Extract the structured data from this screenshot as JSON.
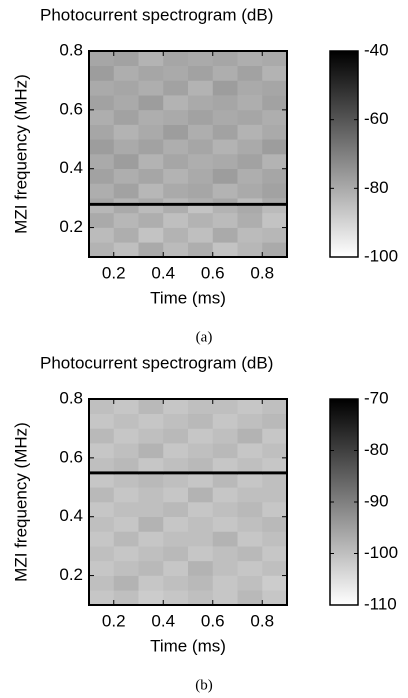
{
  "chart_data": [
    {
      "type": "heatmap",
      "title": "Photocurrent spectrogram (dB)",
      "x_label": "Time (ms)",
      "y_label": "MZI frequency (MHz)",
      "caption": "(a)",
      "xbins": [
        0.1,
        0.2,
        0.3,
        0.4,
        0.5,
        0.6,
        0.7,
        0.8,
        0.9
      ],
      "ybins": [
        0.1,
        0.15,
        0.2,
        0.25,
        0.275,
        0.285,
        0.3,
        0.35,
        0.4,
        0.45,
        0.5,
        0.55,
        0.6,
        0.65,
        0.7,
        0.75,
        0.8
      ],
      "values": [
        [
          -82,
          -85,
          -80,
          -84,
          -81,
          -86,
          -83,
          -80
        ],
        [
          -84,
          -81,
          -86,
          -82,
          -85,
          -80,
          -84,
          -83
        ],
        [
          -80,
          -83,
          -81,
          -85,
          -82,
          -84,
          -81,
          -86
        ],
        [
          -83,
          -80,
          -84,
          -81,
          -86,
          -82,
          -80,
          -84
        ],
        [
          -40,
          -40,
          -40,
          -40,
          -40,
          -40,
          -40,
          -40
        ],
        [
          -79,
          -82,
          -80,
          -83,
          -81,
          -79,
          -84,
          -80
        ],
        [
          -81,
          -78,
          -83,
          -80,
          -79,
          -82,
          -80,
          -78
        ],
        [
          -78,
          -81,
          -79,
          -82,
          -80,
          -77,
          -81,
          -79
        ],
        [
          -80,
          -77,
          -82,
          -79,
          -81,
          -80,
          -78,
          -82
        ],
        [
          -77,
          -80,
          -78,
          -81,
          -79,
          -82,
          -80,
          -77
        ],
        [
          -79,
          -82,
          -80,
          -77,
          -81,
          -78,
          -82,
          -80
        ],
        [
          -81,
          -78,
          -81,
          -80,
          -78,
          -80,
          -79,
          -81
        ],
        [
          -78,
          -80,
          -77,
          -82,
          -80,
          -79,
          -81,
          -78
        ],
        [
          -80,
          -79,
          -81,
          -78,
          -82,
          -77,
          -80,
          -79
        ],
        [
          -77,
          -81,
          -79,
          -80,
          -78,
          -81,
          -78,
          -82
        ],
        [
          -79,
          -78,
          -82,
          -79,
          -80,
          -79,
          -81,
          -80
        ]
      ],
      "xlim": [
        0.1,
        0.9
      ],
      "ylim": [
        0.1,
        0.8
      ],
      "xticks": [
        0.2,
        0.4,
        0.6,
        0.8
      ],
      "yticks": [
        0.2,
        0.4,
        0.6,
        0.8
      ],
      "clim": [
        -100,
        -40
      ],
      "cticks": [
        -40,
        -60,
        -80,
        -100
      ],
      "colormap": "gray"
    },
    {
      "type": "heatmap",
      "title": "Photocurrent spectrogram (dB)",
      "x_label": "Time (ms)",
      "y_label": "MZI frequency (MHz)",
      "caption": "(b)",
      "xbins": [
        0.1,
        0.2,
        0.3,
        0.4,
        0.5,
        0.6,
        0.7,
        0.8,
        0.9
      ],
      "ybins": [
        0.1,
        0.15,
        0.2,
        0.25,
        0.3,
        0.35,
        0.4,
        0.45,
        0.5,
        0.545,
        0.555,
        0.6,
        0.65,
        0.7,
        0.75,
        0.8
      ],
      "values": [
        [
          -101,
          -100,
          -102,
          -101,
          -100,
          -101,
          -99,
          -101
        ],
        [
          -100,
          -98,
          -101,
          -100,
          -99,
          -101,
          -100,
          -102
        ],
        [
          -101,
          -100,
          -99,
          -101,
          -98,
          -100,
          -101,
          -100
        ],
        [
          -100,
          -101,
          -100,
          -99,
          -101,
          -100,
          -99,
          -101
        ],
        [
          -101,
          -99,
          -101,
          -100,
          -100,
          -98,
          -101,
          -100
        ],
        [
          -100,
          -101,
          -98,
          -101,
          -100,
          -101,
          -100,
          -99
        ],
        [
          -101,
          -100,
          -100,
          -99,
          -101,
          -100,
          -99,
          -101
        ],
        [
          -99,
          -101,
          -100,
          -101,
          -98,
          -101,
          -100,
          -100
        ],
        [
          -101,
          -100,
          -99,
          -100,
          -101,
          -99,
          -101,
          -100
        ],
        [
          -70,
          -70,
          -70,
          -70,
          -70,
          -70,
          -70,
          -70
        ],
        [
          -100,
          -99,
          -101,
          -100,
          -99,
          -101,
          -100,
          -101
        ],
        [
          -101,
          -100,
          -98,
          -101,
          -100,
          -99,
          -101,
          -100
        ],
        [
          -99,
          -101,
          -100,
          -99,
          -101,
          -100,
          -98,
          -101
        ],
        [
          -101,
          -100,
          -101,
          -100,
          -99,
          -101,
          -100,
          -99
        ],
        [
          -100,
          -101,
          -99,
          -101,
          -100,
          -100,
          -101,
          -100
        ]
      ],
      "xlim": [
        0.1,
        0.9
      ],
      "ylim": [
        0.1,
        0.8
      ],
      "xticks": [
        0.2,
        0.4,
        0.6,
        0.8
      ],
      "yticks": [
        0.2,
        0.4,
        0.6,
        0.8
      ],
      "clim": [
        -110,
        -70
      ],
      "cticks": [
        -70,
        -80,
        -90,
        -100,
        -110
      ],
      "colormap": "gray"
    }
  ]
}
